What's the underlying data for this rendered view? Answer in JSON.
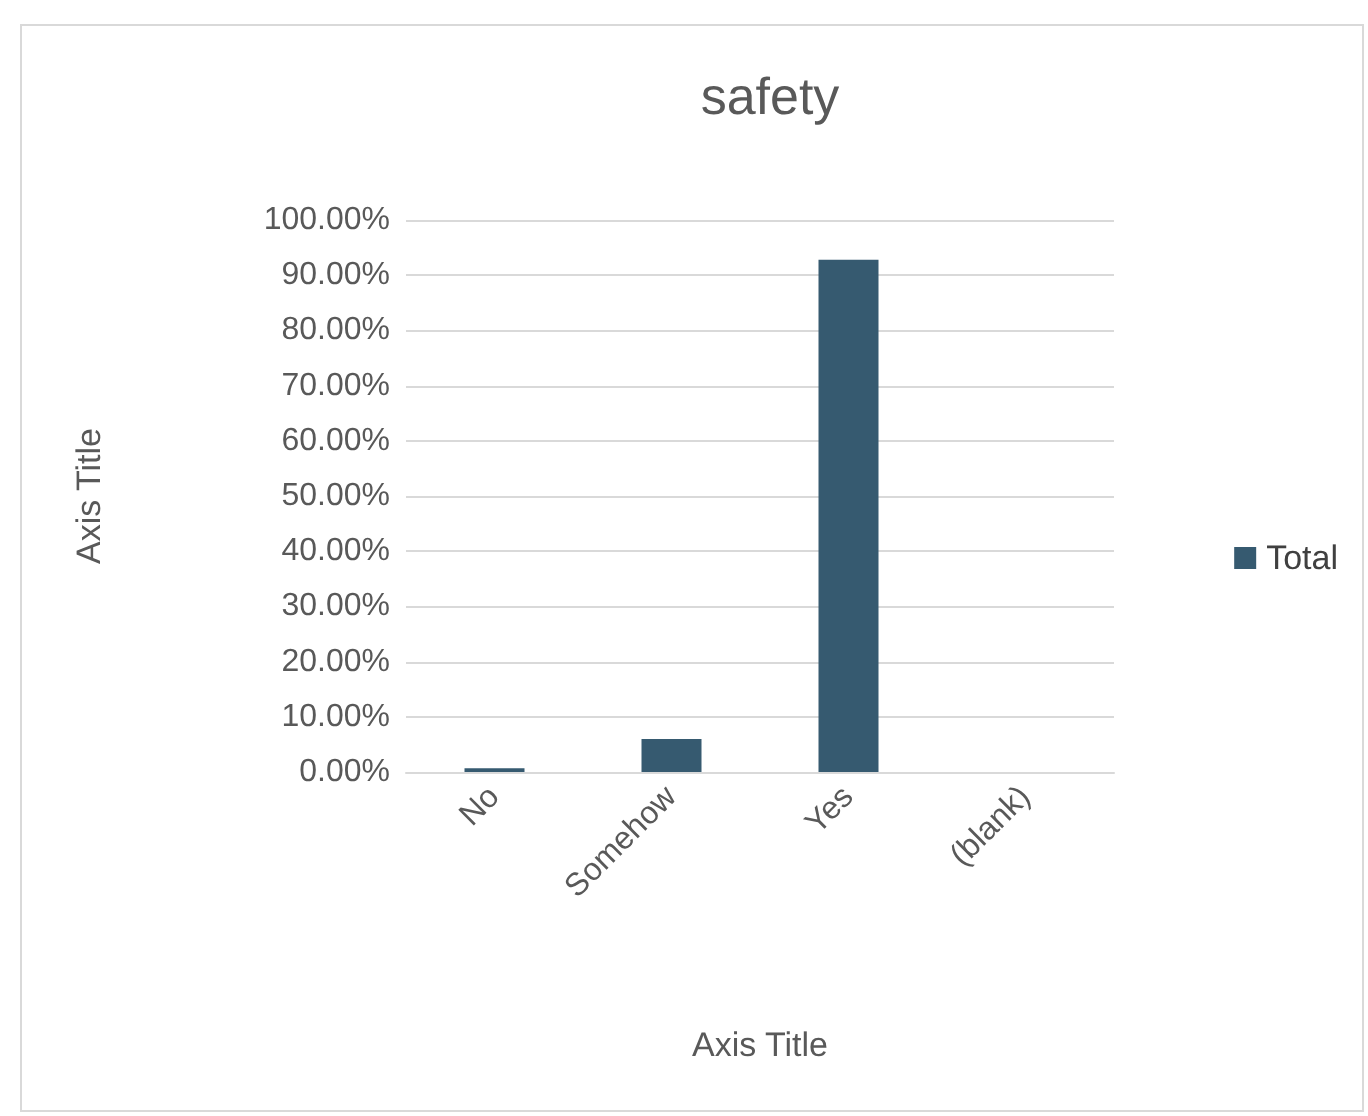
{
  "chart_data": {
    "type": "bar",
    "title": "safety",
    "xlabel": "Axis Title",
    "ylabel": "Axis Title",
    "categories": [
      "No",
      "Somehow",
      "Yes",
      "(blank)"
    ],
    "series": [
      {
        "name": "Total",
        "color": "#365a70",
        "values": [
          0.7,
          6.0,
          92.8,
          null
        ]
      }
    ],
    "ylim": [
      0,
      100
    ],
    "yticks": [
      {
        "value": 0,
        "label": "0.00%"
      },
      {
        "value": 10,
        "label": "10.00%"
      },
      {
        "value": 20,
        "label": "20.00%"
      },
      {
        "value": 30,
        "label": "30.00%"
      },
      {
        "value": 40,
        "label": "40.00%"
      },
      {
        "value": 50,
        "label": "50.00%"
      },
      {
        "value": 60,
        "label": "60.00%"
      },
      {
        "value": 70,
        "label": "70.00%"
      },
      {
        "value": 80,
        "label": "80.00%"
      },
      {
        "value": 90,
        "label": "90.00%"
      },
      {
        "value": 100,
        "label": "100.00%"
      }
    ],
    "grid": "y",
    "legend": "right"
  }
}
